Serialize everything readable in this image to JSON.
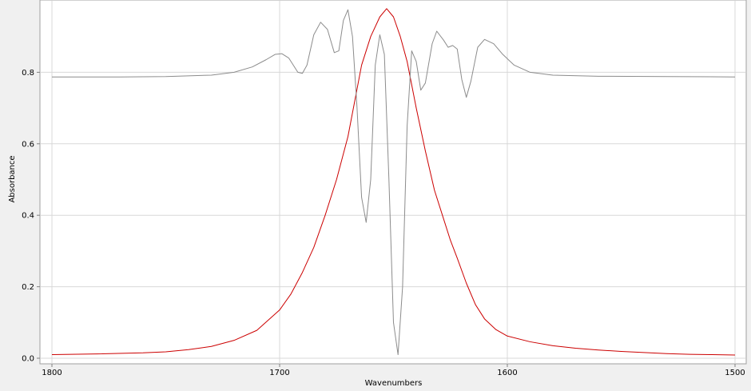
{
  "chart_data": {
    "type": "line",
    "xlabel": "Wavenumbers",
    "ylabel": "Absorbance",
    "xlim": [
      1800,
      1500
    ],
    "ylim": [
      0,
      1.0
    ],
    "x_reversed": true,
    "grid": true,
    "x_ticks": [
      1800,
      1700,
      1600,
      1500
    ],
    "x_tick_labels": [
      "1800",
      "1700",
      "1600",
      "1500"
    ],
    "y_ticks": [
      0.0,
      0.2,
      0.4,
      0.6,
      0.8
    ],
    "y_tick_labels": [
      "0.0",
      "0.2",
      "0.4",
      "0.6",
      "0.8"
    ],
    "series": [
      {
        "color": "#cc0000",
        "points": [
          [
            1800,
            0.01
          ],
          [
            1780,
            0.012
          ],
          [
            1760,
            0.015
          ],
          [
            1750,
            0.018
          ],
          [
            1740,
            0.024
          ],
          [
            1730,
            0.033
          ],
          [
            1720,
            0.05
          ],
          [
            1710,
            0.078
          ],
          [
            1700,
            0.135
          ],
          [
            1695,
            0.18
          ],
          [
            1690,
            0.24
          ],
          [
            1685,
            0.31
          ],
          [
            1680,
            0.4
          ],
          [
            1675,
            0.5
          ],
          [
            1670,
            0.62
          ],
          [
            1667,
            0.72
          ],
          [
            1664,
            0.82
          ],
          [
            1660,
            0.9
          ],
          [
            1656,
            0.955
          ],
          [
            1653,
            0.978
          ],
          [
            1650,
            0.955
          ],
          [
            1647,
            0.9
          ],
          [
            1644,
            0.83
          ],
          [
            1640,
            0.7
          ],
          [
            1636,
            0.58
          ],
          [
            1632,
            0.47
          ],
          [
            1628,
            0.39
          ],
          [
            1625,
            0.33
          ],
          [
            1622,
            0.28
          ],
          [
            1618,
            0.21
          ],
          [
            1614,
            0.15
          ],
          [
            1610,
            0.11
          ],
          [
            1605,
            0.08
          ],
          [
            1600,
            0.062
          ],
          [
            1590,
            0.046
          ],
          [
            1580,
            0.035
          ],
          [
            1570,
            0.028
          ],
          [
            1560,
            0.023
          ],
          [
            1550,
            0.019
          ],
          [
            1540,
            0.016
          ],
          [
            1530,
            0.013
          ],
          [
            1520,
            0.011
          ],
          [
            1510,
            0.01
          ],
          [
            1500,
            0.009
          ]
        ]
      },
      {
        "color": "#8c8c8c",
        "points": [
          [
            1800,
            0.787
          ],
          [
            1770,
            0.787
          ],
          [
            1750,
            0.788
          ],
          [
            1730,
            0.792
          ],
          [
            1720,
            0.8
          ],
          [
            1712,
            0.815
          ],
          [
            1706,
            0.835
          ],
          [
            1702,
            0.85
          ],
          [
            1699,
            0.852
          ],
          [
            1696,
            0.84
          ],
          [
            1692,
            0.8
          ],
          [
            1690,
            0.797
          ],
          [
            1688,
            0.82
          ],
          [
            1685,
            0.905
          ],
          [
            1682,
            0.94
          ],
          [
            1679,
            0.92
          ],
          [
            1676,
            0.855
          ],
          [
            1674,
            0.86
          ],
          [
            1672,
            0.945
          ],
          [
            1670,
            0.975
          ],
          [
            1668,
            0.9
          ],
          [
            1666,
            0.7
          ],
          [
            1664,
            0.45
          ],
          [
            1662,
            0.38
          ],
          [
            1660,
            0.5
          ],
          [
            1658,
            0.82
          ],
          [
            1656,
            0.905
          ],
          [
            1654,
            0.85
          ],
          [
            1652,
            0.5
          ],
          [
            1650,
            0.1
          ],
          [
            1648,
            0.01
          ],
          [
            1646,
            0.2
          ],
          [
            1644,
            0.65
          ],
          [
            1642,
            0.86
          ],
          [
            1640,
            0.83
          ],
          [
            1638,
            0.75
          ],
          [
            1636,
            0.77
          ],
          [
            1633,
            0.88
          ],
          [
            1631,
            0.915
          ],
          [
            1628,
            0.89
          ],
          [
            1626,
            0.87
          ],
          [
            1624,
            0.875
          ],
          [
            1622,
            0.865
          ],
          [
            1620,
            0.78
          ],
          [
            1618,
            0.73
          ],
          [
            1616,
            0.775
          ],
          [
            1613,
            0.87
          ],
          [
            1610,
            0.892
          ],
          [
            1606,
            0.88
          ],
          [
            1602,
            0.85
          ],
          [
            1597,
            0.82
          ],
          [
            1590,
            0.8
          ],
          [
            1580,
            0.792
          ],
          [
            1560,
            0.789
          ],
          [
            1530,
            0.788
          ],
          [
            1500,
            0.787
          ]
        ]
      }
    ]
  }
}
